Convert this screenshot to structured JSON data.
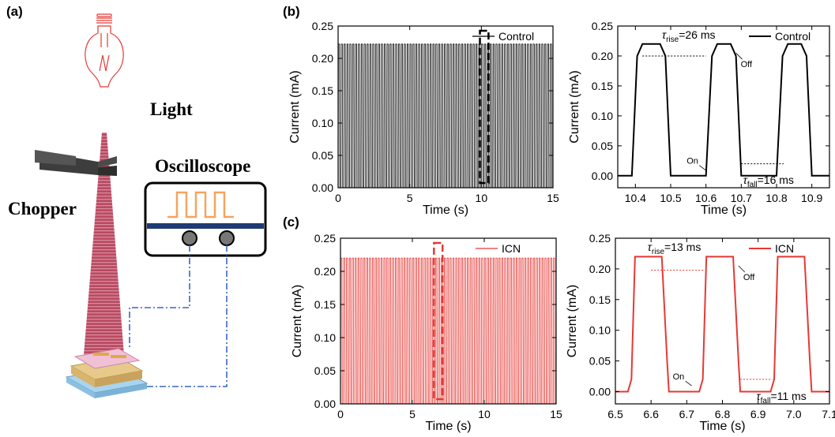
{
  "panel_labels": {
    "a": "(a)",
    "b": "(b)",
    "c": "(c)"
  },
  "schematic": {
    "light_label": "Light",
    "chopper_label": "Chopper",
    "oscilloscope_label": "Oscilloscope",
    "colors": {
      "beam": "#b73a55",
      "bulb": "#e53935",
      "scope_wave": "#f4a460",
      "wire": "#3a66c4"
    }
  },
  "chart_data": [
    {
      "id": "b-full",
      "type": "line",
      "xlabel": "Time (s)",
      "ylabel": "Current (mA)",
      "xlim": [
        0,
        15
      ],
      "ylim": [
        0,
        0.25
      ],
      "xticks": [
        "0",
        "5",
        "10",
        "15"
      ],
      "yticks": [
        "0.00",
        "0.05",
        "0.10",
        "0.15",
        "0.20",
        "0.25"
      ],
      "series": [
        {
          "name": "Control",
          "color": "#000000",
          "period_s": 0.2,
          "low": 0.0,
          "high": 0.222
        }
      ],
      "legend": "top-right",
      "highlight_x": [
        9.9,
        10.5
      ],
      "highlight_color": "#000000"
    },
    {
      "id": "b-zoom",
      "type": "line",
      "xlabel": "Time (s)",
      "ylabel": "Current (mA)",
      "xlim": [
        10.35,
        10.95
      ],
      "ylim": [
        -0.02,
        0.25
      ],
      "xticks": [
        "10.4",
        "10.5",
        "10.6",
        "10.7",
        "10.8",
        "10.9"
      ],
      "yticks": [
        "0.00",
        "0.05",
        "0.10",
        "0.15",
        "0.20",
        "0.25"
      ],
      "series": [
        {
          "name": "Control",
          "color": "#000000",
          "x": [
            10.35,
            10.39,
            10.405,
            10.42,
            10.47,
            10.485,
            10.5,
            10.53,
            10.57,
            10.6,
            10.617,
            10.632,
            10.67,
            10.685,
            10.7,
            10.73,
            10.77,
            10.8,
            10.817,
            10.832,
            10.87,
            10.885,
            10.9,
            10.95
          ],
          "y": [
            0.0,
            0.0,
            0.2,
            0.22,
            0.22,
            0.2,
            0.0,
            0.0,
            0.0,
            0.0,
            0.2,
            0.22,
            0.22,
            0.2,
            0.0,
            0.0,
            0.0,
            0.0,
            0.2,
            0.22,
            0.22,
            0.2,
            0.0,
            0.0
          ]
        }
      ],
      "legend": "top-right",
      "annotations": {
        "rise": {
          "tau": "τ",
          "sub": "rise",
          "value": "=26 ms"
        },
        "fall": {
          "tau": "τ",
          "sub": "fall",
          "value": "=16 ms"
        },
        "on": "On",
        "off": "Off"
      }
    },
    {
      "id": "c-full",
      "type": "line",
      "xlabel": "Time (s)",
      "ylabel": "Current (mA)",
      "xlim": [
        0,
        15
      ],
      "ylim": [
        0,
        0.25
      ],
      "xticks": [
        "0",
        "5",
        "10",
        "15"
      ],
      "yticks": [
        "0.00",
        "0.05",
        "0.10",
        "0.15",
        "0.20",
        "0.25"
      ],
      "series": [
        {
          "name": "ICN",
          "color": "#e53935",
          "period_s": 0.2,
          "low": 0.0,
          "high": 0.22
        }
      ],
      "legend": "top-right",
      "highlight_x": [
        6.5,
        7.1
      ],
      "highlight_color": "#e53935"
    },
    {
      "id": "c-zoom",
      "type": "line",
      "xlabel": "Time (s)",
      "ylabel": "Current (mA)",
      "xlim": [
        6.5,
        7.1
      ],
      "ylim": [
        -0.02,
        0.25
      ],
      "xticks": [
        "6.5",
        "6.6",
        "6.7",
        "6.8",
        "6.9",
        "7.0",
        "7.1"
      ],
      "yticks": [
        "0.00",
        "0.05",
        "0.10",
        "0.15",
        "0.20",
        "0.25"
      ],
      "series": [
        {
          "name": "ICN",
          "color": "#e53935",
          "x": [
            6.5,
            6.535,
            6.545,
            6.555,
            6.6,
            6.63,
            6.645,
            6.65,
            6.7,
            6.735,
            6.745,
            6.755,
            6.8,
            6.83,
            6.845,
            6.85,
            6.9,
            6.935,
            6.945,
            6.955,
            7.0,
            7.03,
            7.045,
            7.05,
            7.1
          ],
          "y": [
            0.0,
            0.0,
            0.02,
            0.22,
            0.22,
            0.22,
            0.05,
            0.0,
            0.0,
            0.0,
            0.02,
            0.22,
            0.22,
            0.22,
            0.05,
            0.0,
            0.0,
            0.0,
            0.02,
            0.22,
            0.22,
            0.22,
            0.05,
            0.0,
            0.0
          ]
        }
      ],
      "legend": "top-right",
      "annotations": {
        "rise": {
          "tau": "τ",
          "sub": "rise",
          "value": "=13 ms"
        },
        "fall": {
          "tau": "τ",
          "sub": "fall",
          "value": "=11 ms"
        },
        "on": "On",
        "off": "Off"
      }
    }
  ]
}
